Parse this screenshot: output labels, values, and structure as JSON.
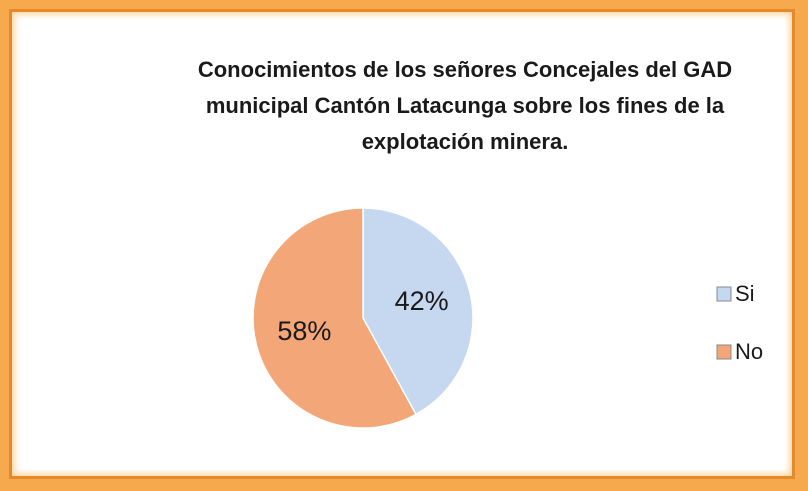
{
  "chart_data": {
    "type": "pie",
    "title": "Conocimientos de los  señores Concejales del GAD municipal Cantón Latacunga sobre los fines de la explotación minera.",
    "categories": [
      "Si",
      "No"
    ],
    "values": [
      42,
      58
    ],
    "value_labels": [
      "42%",
      "58%"
    ],
    "colors": [
      "#c6d7f0",
      "#f3a677"
    ],
    "legend": "right"
  }
}
